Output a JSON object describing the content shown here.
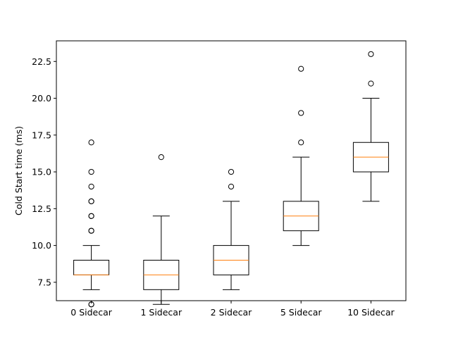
{
  "chart_data": {
    "type": "box",
    "title": "",
    "xlabel": "",
    "ylabel": "Cold Start time (ms)",
    "ylim": [
      6.25,
      23.9
    ],
    "yticks": [
      7.5,
      10.0,
      12.5,
      15.0,
      17.5,
      20.0,
      22.5
    ],
    "ytick_labels": [
      "7.5",
      "10.0",
      "12.5",
      "15.0",
      "17.5",
      "20.0",
      "22.5"
    ],
    "grid": false,
    "legend": "none",
    "colors": {
      "box": "#000000",
      "median": "#ff7f0e",
      "outlier": "#000000"
    },
    "categories": [
      "0 Sidecar",
      "1 Sidecar",
      "2 Sidecar",
      "5 Sidecar",
      "10 Sidecar"
    ],
    "boxes": [
      {
        "whisker_low": 7,
        "q1": 8,
        "median": 8,
        "q3": 9,
        "whisker_high": 10,
        "outliers": [
          6,
          6,
          11,
          11,
          12,
          12,
          13,
          13,
          14,
          15,
          17
        ]
      },
      {
        "whisker_low": 6,
        "q1": 7,
        "median": 8,
        "q3": 9,
        "whisker_high": 12,
        "outliers": [
          16
        ]
      },
      {
        "whisker_low": 7,
        "q1": 8,
        "median": 9,
        "q3": 10,
        "whisker_high": 13,
        "outliers": [
          14,
          15
        ]
      },
      {
        "whisker_low": 10,
        "q1": 11,
        "median": 12,
        "q3": 13,
        "whisker_high": 16,
        "outliers": [
          17,
          19,
          22
        ]
      },
      {
        "whisker_low": 13,
        "q1": 15,
        "median": 16,
        "q3": 17,
        "whisker_high": 20,
        "outliers": [
          21,
          23
        ]
      }
    ]
  }
}
